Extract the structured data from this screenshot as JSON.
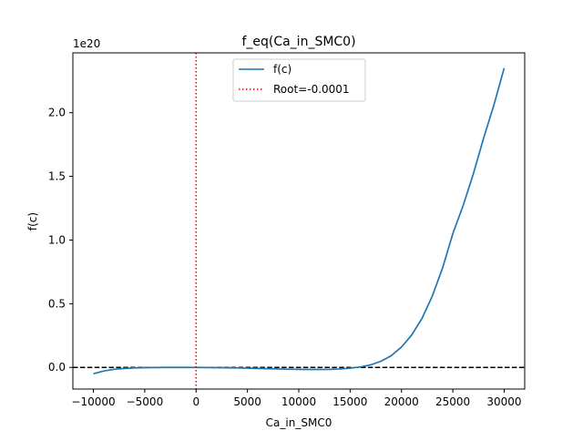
{
  "chart_data": {
    "type": "line",
    "title": "f_eq(Ca_in_SMC0)",
    "xlabel": "Ca_in_SMC0",
    "ylabel": "f(c)",
    "y_offset_text": "1e20",
    "xlim": [
      -12000,
      32000
    ],
    "ylim": [
      -0.17,
      2.47
    ],
    "y_scale_exponent": 20,
    "xticks": [
      -10000,
      -5000,
      0,
      5000,
      10000,
      15000,
      20000,
      25000,
      30000
    ],
    "xtick_labels": [
      "−10000",
      "−5000",
      "0",
      "5000",
      "10000",
      "15000",
      "20000",
      "25000",
      "30000"
    ],
    "yticks": [
      0.0,
      0.5,
      1.0,
      1.5,
      2.0
    ],
    "ytick_labels": [
      "0.0",
      "0.5",
      "1.0",
      "1.5",
      "2.0"
    ],
    "grid": false,
    "legend_position": "top-center",
    "series": [
      {
        "name": "f(c)",
        "color": "#1f77b4",
        "linestyle": "solid",
        "x": [
          -10000,
          -9000,
          -8000,
          -7000,
          -6000,
          -5000,
          -4000,
          -3000,
          -2000,
          -1000,
          0,
          1000,
          2000,
          3000,
          4000,
          5000,
          6000,
          7000,
          8000,
          9000,
          10000,
          11000,
          12000,
          13000,
          14000,
          15000,
          16000,
          17000,
          18000,
          19000,
          20000,
          21000,
          22000,
          23000,
          24000,
          25000,
          26000,
          27000,
          28000,
          29000,
          30000
        ],
        "y": [
          -0.05,
          -0.028,
          -0.015,
          -0.008,
          -0.004,
          -0.002,
          -0.001,
          0.0,
          0.0,
          0.0,
          0.0,
          -0.001,
          -0.002,
          -0.003,
          -0.004,
          -0.006,
          -0.008,
          -0.01,
          -0.012,
          -0.014,
          -0.015,
          -0.016,
          -0.016,
          -0.015,
          -0.012,
          -0.006,
          0.004,
          0.02,
          0.048,
          0.092,
          0.16,
          0.255,
          0.385,
          0.56,
          0.78,
          1.05,
          1.27,
          1.52,
          1.8,
          2.06,
          2.35
        ]
      },
      {
        "name": "Root=-0.0001",
        "color": "#ff0000",
        "linestyle": "dotted",
        "orientation": "vertical",
        "x_value": -0.0001
      }
    ],
    "reference_lines": [
      {
        "orientation": "horizontal",
        "y_value": 0,
        "color": "#000000",
        "linestyle": "dashed"
      }
    ]
  }
}
